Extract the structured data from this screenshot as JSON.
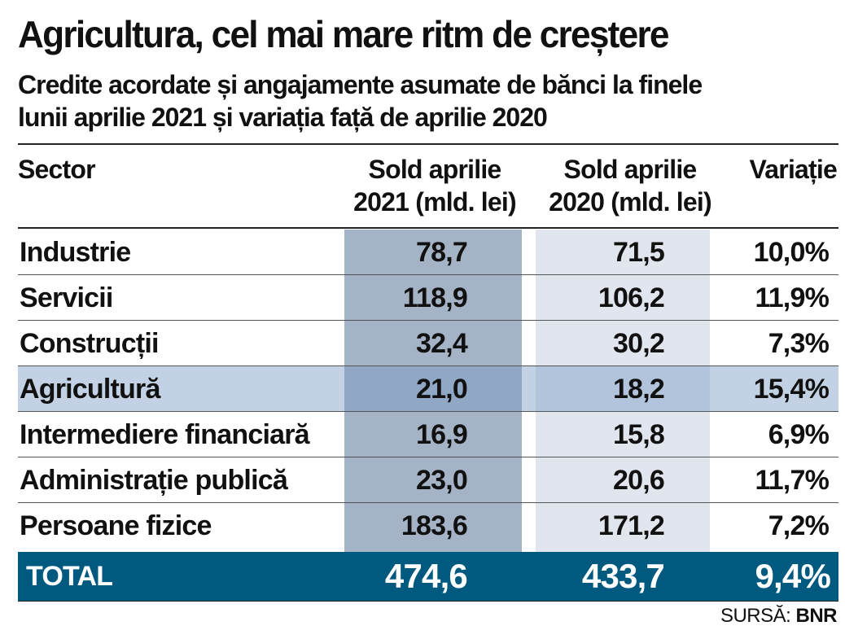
{
  "title": "Agricultura, cel mai mare ritm de creștere",
  "subtitle_line1": "Credite acordate și angajamente asumate de bănci la finele",
  "subtitle_line2": "lunii aprilie 2021 și variația față de aprilie 2020",
  "headers": {
    "sector": "Sector",
    "sold2021_line1": "Sold aprilie",
    "sold2021_line2": "2021 (mld. lei)",
    "sold2020_line1": "Sold aprilie",
    "sold2020_line2": "2020 (mld. lei)",
    "variatie": "Variație"
  },
  "rows": [
    {
      "sector": "Industrie",
      "sold2021": "78,7",
      "sold2020": "71,5",
      "variatie": "10,0%"
    },
    {
      "sector": "Servicii",
      "sold2021": "118,9",
      "sold2020": "106,2",
      "variatie": "11,9%"
    },
    {
      "sector": "Construcții",
      "sold2021": "32,4",
      "sold2020": "30,2",
      "variatie": "7,3%"
    },
    {
      "sector": "Agricultură",
      "sold2021": "21,0",
      "sold2020": "18,2",
      "variatie": "15,4%"
    },
    {
      "sector": "Intermediere financiară",
      "sold2021": "16,9",
      "sold2020": "15,8",
      "variatie": "6,9%"
    },
    {
      "sector": "Administrație publică",
      "sold2021": "23,0",
      "sold2020": "20,6",
      "variatie": "11,7%"
    },
    {
      "sector": "Persoane fizice",
      "sold2021": "183,6",
      "sold2020": "171,2",
      "variatie": "7,2%"
    }
  ],
  "total": {
    "label": "TOTAL",
    "sold2021": "474,6",
    "sold2020": "433,7",
    "variatie": "9,4%"
  },
  "source": {
    "label": "SURSĂ:",
    "value": "BNR"
  },
  "colors": {
    "col2021": "#a5b3c6",
    "col2020": "#e1e6ee",
    "highlight": "#7f9bbf",
    "total": "#005a80"
  }
}
